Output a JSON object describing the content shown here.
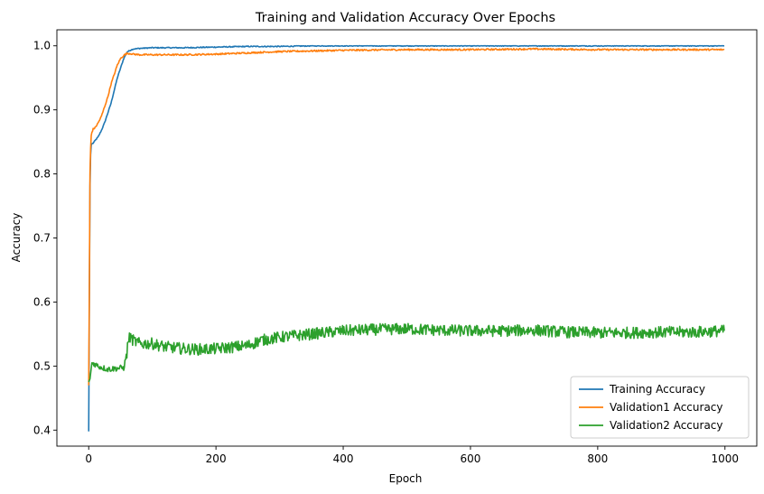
{
  "chart_data": {
    "type": "line",
    "title": "Training and Validation Accuracy Over Epochs",
    "xlabel": "Epoch",
    "ylabel": "Accuracy",
    "xlim": [
      -50,
      1050
    ],
    "ylim": [
      0.375,
      1.025
    ],
    "xticks": [
      0,
      200,
      400,
      600,
      800,
      1000
    ],
    "yticks": [
      0.4,
      0.5,
      0.6,
      0.7,
      0.8,
      0.9,
      1.0
    ],
    "grid": false,
    "legend_position": "bottom-right",
    "series": [
      {
        "name": "Training Accuracy",
        "color": "#1f77b4",
        "x": [
          0,
          1,
          2,
          3,
          4,
          5,
          7,
          10,
          15,
          20,
          25,
          30,
          35,
          40,
          45,
          50,
          55,
          60,
          65,
          70,
          80,
          100,
          150,
          200,
          250,
          300,
          350,
          400,
          500,
          600,
          700,
          800,
          900,
          999
        ],
        "y": [
          0.398,
          0.6,
          0.78,
          0.83,
          0.845,
          0.847,
          0.848,
          0.852,
          0.858,
          0.868,
          0.88,
          0.895,
          0.91,
          0.93,
          0.95,
          0.965,
          0.98,
          0.99,
          0.993,
          0.995,
          0.996,
          0.997,
          0.997,
          0.998,
          0.999,
          0.999,
          1.0,
          1.0,
          1.0,
          1.0,
          1.0,
          1.0,
          1.0,
          1.0
        ]
      },
      {
        "name": "Validation1 Accuracy",
        "color": "#ff7f0e",
        "x": [
          0,
          1,
          2,
          3,
          4,
          5,
          7,
          10,
          15,
          20,
          25,
          30,
          35,
          40,
          45,
          50,
          55,
          60,
          65,
          70,
          80,
          100,
          150,
          200,
          250,
          300,
          350,
          400,
          500,
          600,
          700,
          800,
          900,
          999
        ],
        "y": [
          0.47,
          0.62,
          0.8,
          0.84,
          0.86,
          0.865,
          0.87,
          0.872,
          0.88,
          0.89,
          0.905,
          0.92,
          0.94,
          0.955,
          0.97,
          0.98,
          0.985,
          0.988,
          0.988,
          0.987,
          0.986,
          0.986,
          0.986,
          0.987,
          0.989,
          0.991,
          0.992,
          0.993,
          0.994,
          0.994,
          0.995,
          0.994,
          0.994,
          0.994
        ]
      },
      {
        "name": "Validation2 Accuracy",
        "color": "#2ca02c",
        "x": [
          0,
          2,
          5,
          10,
          15,
          20,
          30,
          40,
          50,
          55,
          60,
          62,
          65,
          70,
          80,
          100,
          120,
          150,
          170,
          200,
          250,
          270,
          300,
          350,
          400,
          450,
          500,
          550,
          600,
          650,
          700,
          750,
          800,
          850,
          900,
          950,
          999
        ],
        "y": [
          0.475,
          0.48,
          0.505,
          0.503,
          0.5,
          0.498,
          0.495,
          0.496,
          0.497,
          0.497,
          0.52,
          0.54,
          0.545,
          0.54,
          0.535,
          0.535,
          0.53,
          0.527,
          0.526,
          0.527,
          0.532,
          0.54,
          0.545,
          0.55,
          0.555,
          0.557,
          0.558,
          0.556,
          0.555,
          0.555,
          0.556,
          0.553,
          0.552,
          0.552,
          0.553,
          0.553,
          0.555
        ]
      }
    ]
  }
}
